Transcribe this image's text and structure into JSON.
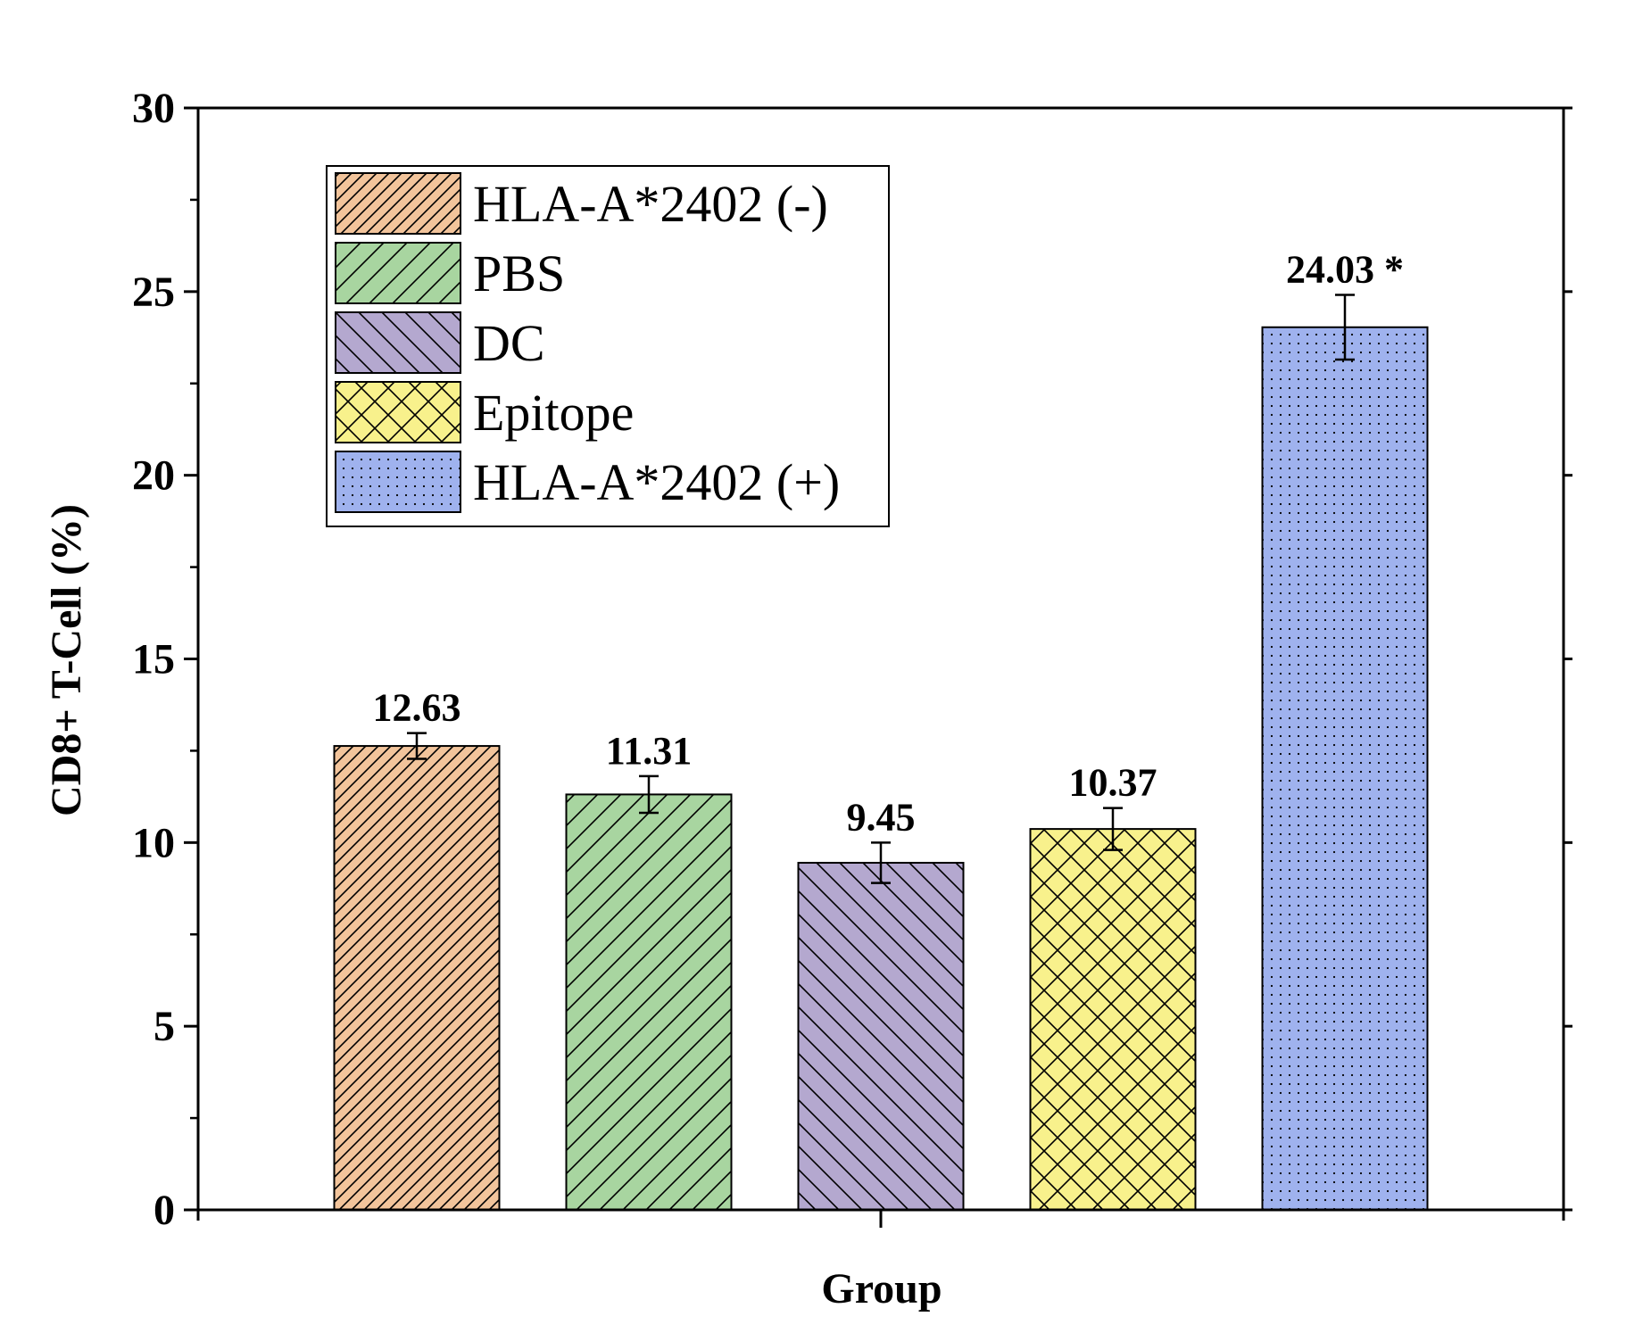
{
  "chart_data": {
    "type": "bar",
    "title": "",
    "xlabel": "Group",
    "ylabel": "CD8+ T-Cell (%)",
    "ylim": [
      0,
      30
    ],
    "yticks": [
      0,
      5,
      10,
      15,
      20,
      25,
      30
    ],
    "grid": false,
    "legend_position": "top-left",
    "series": [
      {
        "name": "HLA-A*2402 (-)",
        "value": 12.63,
        "error": 0.35,
        "label": "12.63",
        "color": "#f2c49b",
        "pattern": "hatch-diagonal-fine"
      },
      {
        "name": "PBS",
        "value": 11.31,
        "error": 0.5,
        "label": "11.31",
        "color": "#a8d5a0",
        "pattern": "hatch-diagonal"
      },
      {
        "name": "DC",
        "value": 9.45,
        "error": 0.55,
        "label": "9.45",
        "color": "#b4a8cf",
        "pattern": "hatch-backdiagonal"
      },
      {
        "name": "Epitope",
        "value": 10.37,
        "error": 0.57,
        "label": "10.37",
        "color": "#f8f18c",
        "pattern": "crosshatch"
      },
      {
        "name": "HLA-A*2402 (+)",
        "value": 24.03,
        "error": 0.88,
        "label": "24.03 *",
        "color": "#9fb2ee",
        "pattern": "dots"
      }
    ]
  }
}
